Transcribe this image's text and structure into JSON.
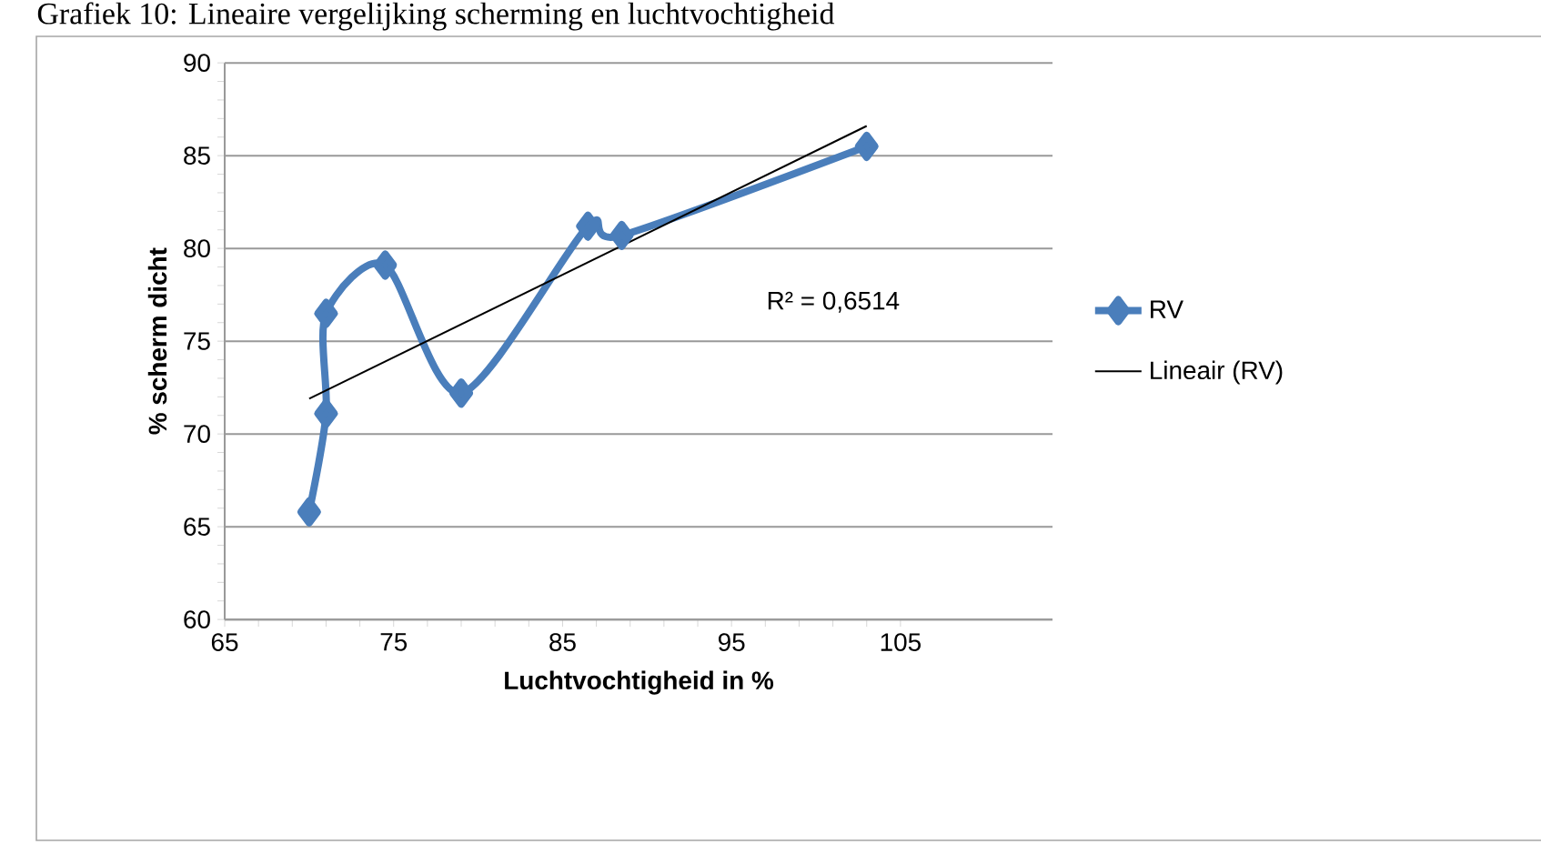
{
  "chart_data": {
    "type": "line",
    "title": "Grafiek 10: Lineaire vergelijking scherming en luchtvochtigheid",
    "xlabel": "Luchtvochtigheid in %",
    "ylabel": "% scherm dicht",
    "xlim": [
      65,
      114
    ],
    "ylim": [
      60,
      90
    ],
    "xticks": [
      65,
      75,
      85,
      95,
      105
    ],
    "yticks": [
      60,
      65,
      70,
      75,
      80,
      85,
      90
    ],
    "grid": "y",
    "legend": "right",
    "series": [
      {
        "name": "RV",
        "color": "#4a7ebb",
        "marker": "diamond",
        "x": [
          70,
          71,
          71,
          74.5,
          79,
          86.5,
          88.5,
          103
        ],
        "values": [
          65.8,
          71.1,
          76.5,
          79.1,
          72.2,
          81.2,
          80.7,
          85.5
        ]
      },
      {
        "name": "Lineair (RV)",
        "color": "#000000",
        "marker": "none",
        "x": [
          70,
          103
        ],
        "values": [
          71.9,
          86.6
        ]
      }
    ],
    "annotations": [
      "R² = 0,6514"
    ]
  }
}
